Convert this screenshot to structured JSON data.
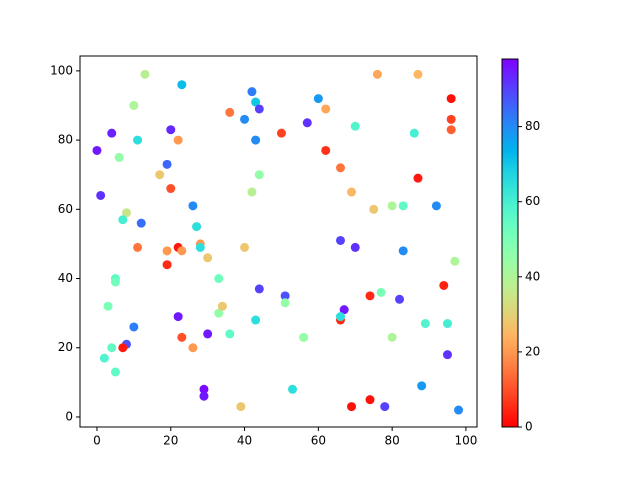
{
  "chart_data": {
    "type": "scatter",
    "cmap": "rainbow_r",
    "x": [
      0,
      1,
      4,
      6,
      8,
      7,
      3,
      5,
      5,
      4,
      2,
      5,
      8,
      7,
      10,
      10,
      13,
      11,
      12,
      11,
      17,
      20,
      22,
      19,
      20,
      19,
      19,
      22,
      23,
      22,
      23,
      23,
      26,
      27,
      28,
      28,
      30,
      26,
      33,
      33,
      34,
      36,
      30,
      29,
      29,
      36,
      40,
      42,
      43,
      44,
      43,
      44,
      42,
      40,
      44,
      43,
      39,
      50,
      51,
      51,
      53,
      56,
      57,
      60,
      62,
      62,
      66,
      70,
      69,
      66,
      70,
      67,
      66,
      66,
      69,
      74,
      78,
      74,
      77,
      76,
      75,
      80,
      83,
      83,
      82,
      80,
      87,
      86,
      87,
      92,
      89,
      88,
      94,
      96,
      96,
      96,
      97,
      95,
      95,
      98
    ],
    "values": [
      77,
      64,
      82,
      75,
      59,
      57,
      32,
      40,
      39,
      20,
      17,
      13,
      21,
      20,
      26,
      90,
      99,
      80,
      56,
      49,
      70,
      83,
      80,
      73,
      66,
      48,
      44,
      49,
      48,
      29,
      23,
      96,
      61,
      55,
      50,
      49,
      46,
      20,
      40,
      30,
      32,
      24,
      24,
      8,
      6,
      88,
      86,
      94,
      91,
      89,
      80,
      70,
      65,
      49,
      37,
      28,
      3,
      82,
      35,
      33,
      8,
      23,
      85,
      92,
      89,
      77,
      72,
      84,
      65,
      51,
      49,
      31,
      28,
      29,
      3,
      5,
      3,
      35,
      36,
      99,
      60,
      61,
      61,
      48,
      34,
      23,
      99,
      82,
      69,
      61,
      27,
      9,
      38,
      92,
      86,
      83,
      45,
      27,
      18,
      2
    ],
    "colors": [
      95,
      92,
      94,
      45,
      35,
      60,
      50,
      55,
      52,
      55,
      58,
      55,
      88,
      3,
      82,
      40,
      38,
      65,
      84,
      15,
      28,
      93,
      20,
      85,
      10,
      20,
      5,
      3,
      20,
      95,
      10,
      72,
      80,
      65,
      20,
      65,
      28,
      20,
      52,
      45,
      28,
      55,
      95,
      97,
      95,
      15,
      80,
      82,
      70,
      90,
      80,
      45,
      38,
      28,
      90,
      65,
      28,
      8,
      88,
      45,
      65,
      45,
      92,
      78,
      22,
      6,
      15,
      58,
      25,
      90,
      92,
      95,
      5,
      65,
      2,
      2,
      90,
      5,
      50,
      22,
      28,
      40,
      55,
      80,
      90,
      40,
      25,
      60,
      3,
      80,
      58,
      78,
      4,
      2,
      8,
      12,
      40,
      60,
      92,
      80
    ],
    "xlim": [
      -4.6,
      103
    ],
    "ylim": [
      -2.9,
      104.3
    ],
    "xticks": [
      0,
      20,
      40,
      60,
      80,
      100
    ],
    "yticks": [
      0,
      20,
      40,
      60,
      80,
      100
    ],
    "clim": [
      0,
      98
    ],
    "cticks": [
      0,
      20,
      40,
      60,
      80
    ]
  }
}
